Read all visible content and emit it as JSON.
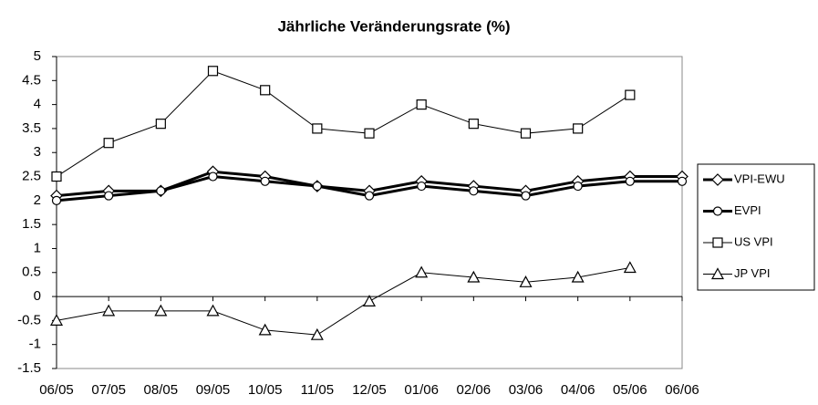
{
  "chart_data": {
    "type": "line",
    "title": "Jährliche Veränderungsrate (%)",
    "categories": [
      "06/05",
      "07/05",
      "08/05",
      "09/05",
      "10/05",
      "11/05",
      "12/05",
      "01/06",
      "02/06",
      "03/06",
      "04/06",
      "05/06",
      "06/06"
    ],
    "series": [
      {
        "name": "VPI-EWU",
        "color": "#000000",
        "marker": "diamond",
        "values": [
          2.1,
          2.2,
          2.2,
          2.6,
          2.5,
          2.3,
          2.2,
          2.4,
          2.3,
          2.2,
          2.4,
          2.5,
          2.5
        ]
      },
      {
        "name": "EVPI",
        "color": "#000000",
        "marker": "circle",
        "values": [
          2.0,
          2.1,
          2.2,
          2.5,
          2.4,
          2.3,
          2.1,
          2.3,
          2.2,
          2.1,
          2.3,
          2.4,
          2.4
        ]
      },
      {
        "name": "US VPI",
        "color": "#000000",
        "marker": "square",
        "values": [
          2.5,
          3.2,
          3.6,
          4.7,
          4.3,
          3.5,
          3.4,
          4.0,
          3.6,
          3.4,
          3.5,
          4.2,
          null
        ]
      },
      {
        "name": "JP VPI",
        "color": "#000000",
        "marker": "triangle",
        "values": [
          -0.5,
          -0.3,
          -0.3,
          -0.3,
          -0.7,
          -0.8,
          -0.1,
          0.5,
          0.4,
          0.3,
          0.4,
          0.6,
          null
        ]
      }
    ],
    "ylim": [
      -1.5,
      5
    ],
    "yticks": [
      -1.5,
      -1,
      -0.5,
      0,
      0.5,
      1,
      1.5,
      2,
      2.5,
      3,
      3.5,
      4,
      4.5,
      5
    ],
    "grid": false,
    "legend": "right"
  }
}
